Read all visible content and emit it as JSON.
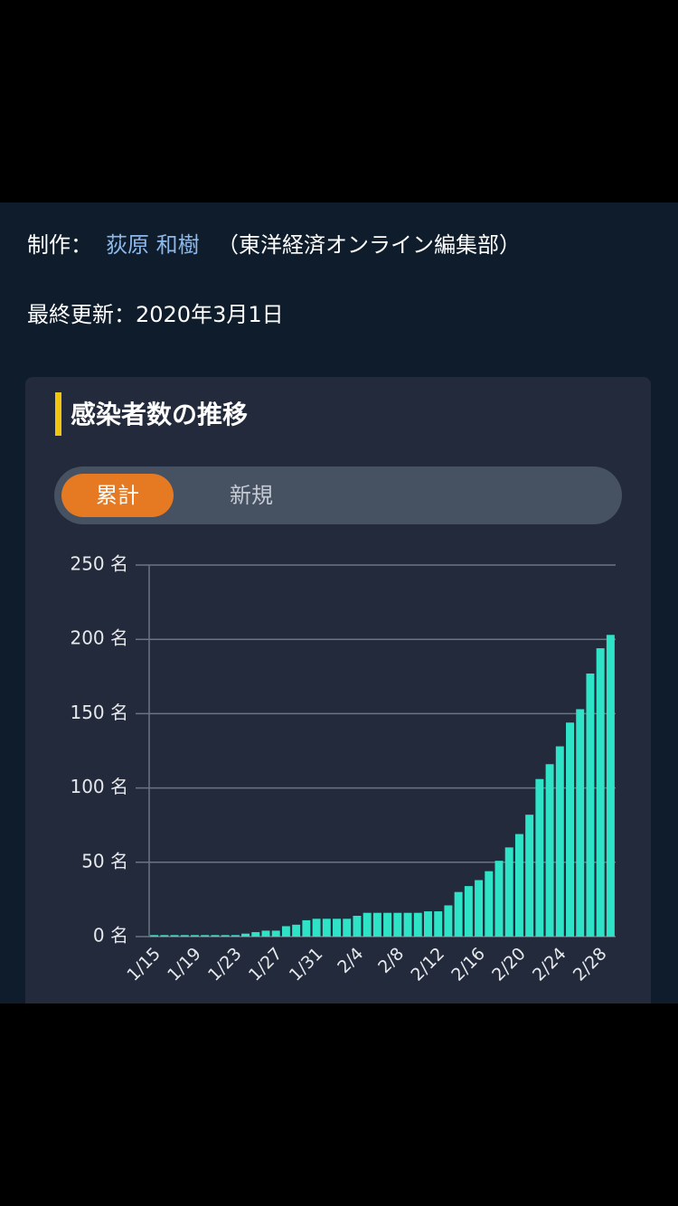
{
  "credit": {
    "label": "制作：",
    "author": "荻原 和樹",
    "org": "（東洋経済オンライン編集部）"
  },
  "updated": "最終更新：2020年3月1日",
  "card": {
    "title": "感染者数の推移",
    "tabs": [
      "累計",
      "新規"
    ]
  },
  "chart_data": {
    "type": "bar",
    "categories": [
      "1/15",
      null,
      null,
      null,
      "1/19",
      null,
      null,
      null,
      "1/23",
      null,
      null,
      null,
      "1/27",
      null,
      null,
      null,
      "1/31",
      null,
      null,
      null,
      "2/4",
      null,
      null,
      null,
      "2/8",
      null,
      null,
      null,
      "2/12",
      null,
      null,
      null,
      "2/16",
      null,
      null,
      null,
      "2/20",
      null,
      null,
      null,
      "2/24",
      null,
      null,
      null,
      "2/28",
      null
    ],
    "values": [
      1,
      1,
      1,
      1,
      1,
      1,
      1,
      1,
      1,
      2,
      3,
      4,
      4,
      7,
      8,
      11,
      12,
      12,
      12,
      12,
      14,
      16,
      16,
      16,
      16,
      16,
      16,
      17,
      17,
      21,
      30,
      34,
      38,
      44,
      51,
      60,
      69,
      82,
      106,
      116,
      128,
      144,
      153,
      177,
      194,
      203
    ],
    "color": "#2ee3c6",
    "ylim": [
      0,
      250
    ],
    "yticks": [
      {
        "value": 0,
        "label": "0 名"
      },
      {
        "value": 50,
        "label": "50 名"
      },
      {
        "value": 100,
        "label": "100 名"
      },
      {
        "value": 150,
        "label": "150 名"
      },
      {
        "value": 200,
        "label": "200 名"
      },
      {
        "value": 250,
        "label": "250 名"
      }
    ],
    "grid": true
  }
}
